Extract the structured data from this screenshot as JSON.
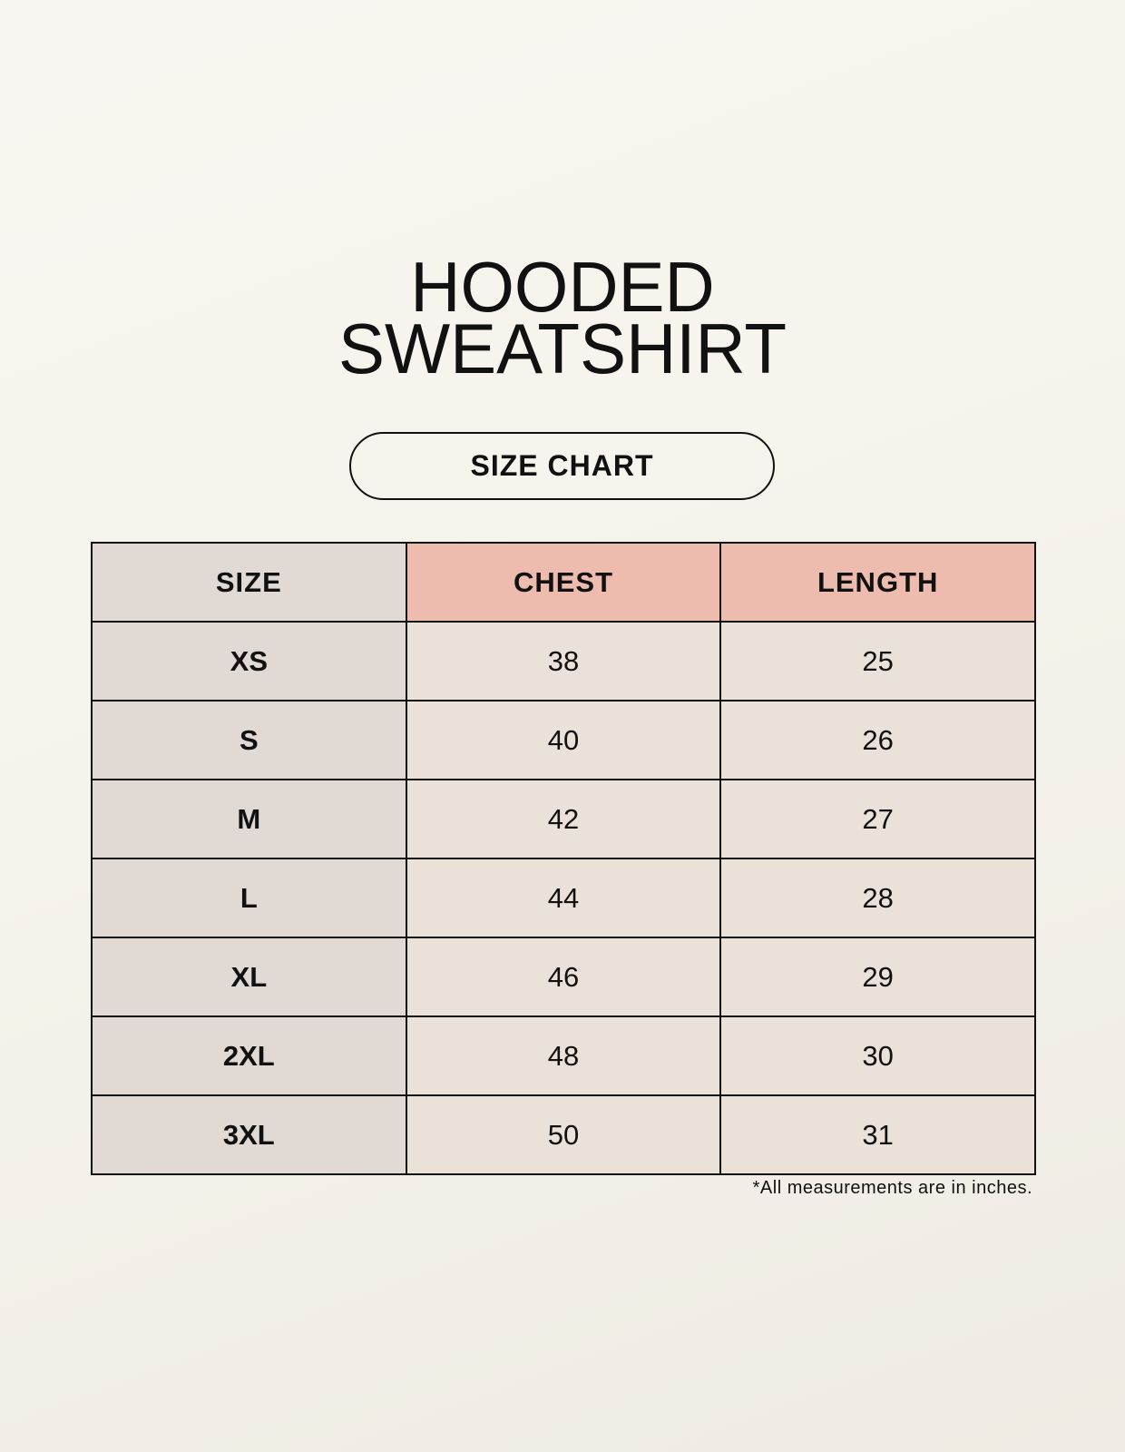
{
  "title": {
    "line1": "HOODED",
    "line2": "SWEATSHIRT"
  },
  "badge": "SIZE CHART",
  "table": {
    "headers": [
      "SIZE",
      "CHEST",
      "LENGTH"
    ],
    "rows": [
      [
        "XS",
        "38",
        "25"
      ],
      [
        "S",
        "40",
        "26"
      ],
      [
        "M",
        "42",
        "27"
      ],
      [
        "L",
        "44",
        "28"
      ],
      [
        "XL",
        "46",
        "29"
      ],
      [
        "2XL",
        "48",
        "30"
      ],
      [
        "3XL",
        "50",
        "31"
      ]
    ]
  },
  "footnote": "*All measurements are in inches.",
  "colors": {
    "size_column": "#e0d9d4",
    "header_accent": "#edbcaf",
    "value_cells": "#eae2d8"
  }
}
